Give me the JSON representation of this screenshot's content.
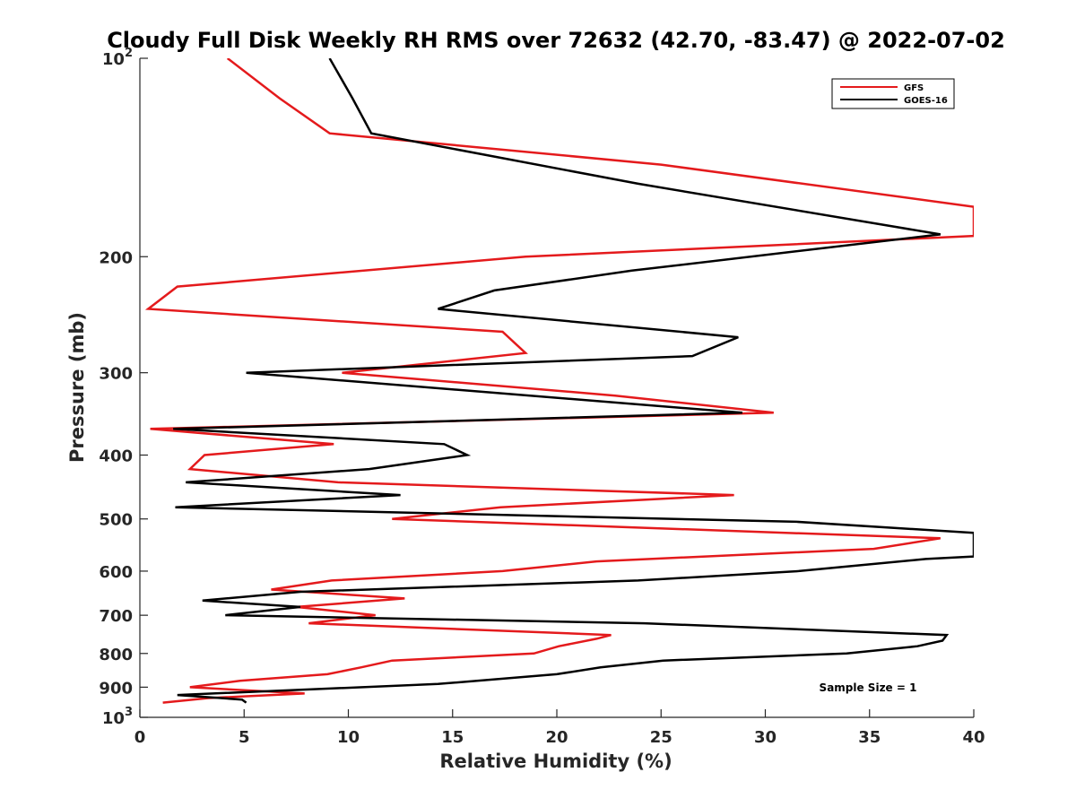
{
  "chart_data": {
    "type": "line",
    "title": "Cloudy Full Disk Weekly RH RMS over 72632 (42.70, -83.47) @ 2022-07-02",
    "xlabel": "Relative Humidity (%)",
    "ylabel": "Pressure (mb)",
    "xlim": [
      0,
      40
    ],
    "ylim": [
      100,
      1000
    ],
    "y_scale": "log",
    "y_reversed": true,
    "grid": false,
    "legend_position": "top-right",
    "x_ticks": [
      {
        "value": 0,
        "label": "0"
      },
      {
        "value": 5,
        "label": "5"
      },
      {
        "value": 10,
        "label": "10"
      },
      {
        "value": 15,
        "label": "15"
      },
      {
        "value": 20,
        "label": "20"
      },
      {
        "value": 25,
        "label": "25"
      },
      {
        "value": 30,
        "label": "30"
      },
      {
        "value": 35,
        "label": "35"
      },
      {
        "value": 40,
        "label": "40"
      }
    ],
    "y_ticks": [
      {
        "value": 100,
        "base": "10",
        "exp": "2"
      },
      {
        "value": 200,
        "label": "200"
      },
      {
        "value": 300,
        "label": "300"
      },
      {
        "value": 400,
        "label": "400"
      },
      {
        "value": 500,
        "label": "500"
      },
      {
        "value": 600,
        "label": "600"
      },
      {
        "value": 700,
        "label": "700"
      },
      {
        "value": 800,
        "label": "800"
      },
      {
        "value": 900,
        "label": "900"
      },
      {
        "value": 1000,
        "base": "10",
        "exp": "3"
      }
    ],
    "annotation": "Sample Size = 1",
    "series": [
      {
        "name": "GFS",
        "color": "#e41a1c",
        "points": [
          [
            4.2,
            100
          ],
          [
            6.7,
            115
          ],
          [
            9.1,
            130
          ],
          [
            25,
            145
          ],
          [
            40,
            168
          ],
          [
            40,
            186
          ],
          [
            18.5,
            200
          ],
          [
            1.8,
            222
          ],
          [
            0.4,
            240
          ],
          [
            17.4,
            260
          ],
          [
            18.5,
            280
          ],
          [
            9.7,
            300
          ],
          [
            22.8,
            325
          ],
          [
            30.4,
            345
          ],
          [
            0.5,
            365
          ],
          [
            9.3,
            385
          ],
          [
            3.1,
            400
          ],
          [
            2.4,
            420
          ],
          [
            9.5,
            440
          ],
          [
            28.5,
            460
          ],
          [
            17.3,
            480
          ],
          [
            12.1,
            500
          ],
          [
            38.4,
            535
          ],
          [
            35.2,
            555
          ],
          [
            21.9,
            580
          ],
          [
            17.4,
            600
          ],
          [
            9.2,
            620
          ],
          [
            6.3,
            640
          ],
          [
            12.7,
            660
          ],
          [
            7.5,
            680
          ],
          [
            11.3,
            700
          ],
          [
            8.1,
            720
          ],
          [
            22.6,
            750
          ],
          [
            21.9,
            760
          ],
          [
            20.1,
            780
          ],
          [
            18.9,
            800
          ],
          [
            12.1,
            820
          ],
          [
            10.6,
            840
          ],
          [
            9.0,
            860
          ],
          [
            4.8,
            880
          ],
          [
            2.4,
            900
          ],
          [
            7.9,
            920
          ],
          [
            3.3,
            935
          ],
          [
            1.1,
            950
          ]
        ]
      },
      {
        "name": "GOES-16",
        "color": "#000000",
        "points": [
          [
            9.1,
            100
          ],
          [
            10.2,
            115
          ],
          [
            11.1,
            130
          ],
          [
            23.9,
            155
          ],
          [
            38.4,
            185
          ],
          [
            23.6,
            210
          ],
          [
            17.0,
            225
          ],
          [
            14.3,
            240
          ],
          [
            28.7,
            265
          ],
          [
            26.5,
            283
          ],
          [
            5.1,
            300
          ],
          [
            28.9,
            345
          ],
          [
            1.6,
            365
          ],
          [
            14.6,
            385
          ],
          [
            15.7,
            400
          ],
          [
            11.0,
            420
          ],
          [
            2.2,
            440
          ],
          [
            12.5,
            460
          ],
          [
            1.7,
            480
          ],
          [
            31.5,
            505
          ],
          [
            40,
            525
          ],
          [
            40,
            570
          ],
          [
            37.7,
            575
          ],
          [
            31.6,
            600
          ],
          [
            23.9,
            620
          ],
          [
            7.7,
            645
          ],
          [
            3.0,
            665
          ],
          [
            7.7,
            680
          ],
          [
            4.1,
            700
          ],
          [
            24.2,
            720
          ],
          [
            38.7,
            750
          ],
          [
            38.5,
            765
          ],
          [
            37.3,
            780
          ],
          [
            33.9,
            800
          ],
          [
            25.1,
            820
          ],
          [
            22.1,
            840
          ],
          [
            20.0,
            860
          ],
          [
            14.3,
            890
          ],
          [
            1.8,
            925
          ],
          [
            4.9,
            940
          ],
          [
            5.1,
            950
          ]
        ]
      }
    ]
  }
}
